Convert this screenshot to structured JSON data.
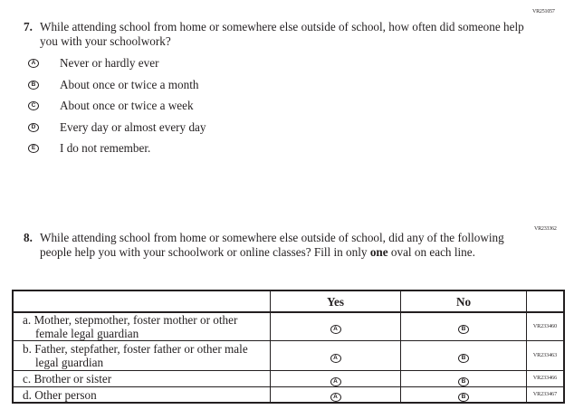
{
  "q7": {
    "id": "VR251057",
    "number": "7.",
    "text": "While attending school from home or somewhere else outside of school, how often did someone help you with your schoolwork?",
    "options": [
      {
        "letter": "A",
        "label": "Never or hardly ever"
      },
      {
        "letter": "B",
        "label": "About once or twice a month"
      },
      {
        "letter": "C",
        "label": "About once or twice a week"
      },
      {
        "letter": "D",
        "label": "Every day or almost every day"
      },
      {
        "letter": "E",
        "label": "I do not remember."
      }
    ]
  },
  "q8": {
    "id": "VR233362",
    "number": "8.",
    "text_before": "While attending school from home or somewhere else outside of school, did any of the following people help you with your schoolwork or online classes? Fill in only ",
    "text_bold": "one",
    "text_after": " oval on each line.",
    "headers": {
      "yes": "Yes",
      "no": "No"
    },
    "yes_letter": "A",
    "no_letter": "B",
    "rows": [
      {
        "label": "a. Mother, stepmother, foster mother or other female legal guardian",
        "id": "VR233460"
      },
      {
        "label": "b. Father, stepfather, foster father or other male legal guardian",
        "id": "VR233463"
      },
      {
        "label": "c. Brother or sister",
        "id": "VR233466"
      },
      {
        "label": "d. Other person",
        "id": "VR233467"
      }
    ]
  }
}
